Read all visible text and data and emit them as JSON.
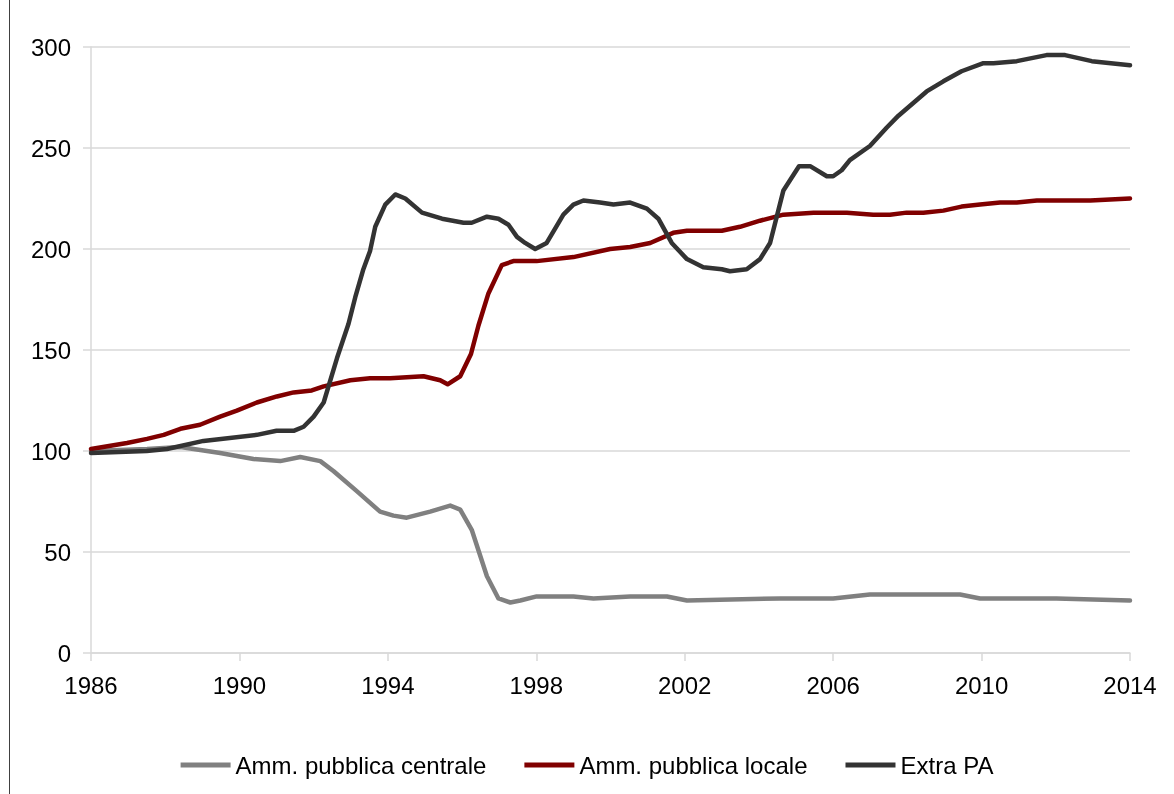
{
  "chart_data": {
    "type": "line",
    "xlim": [
      1986,
      2014
    ],
    "xticks": [
      1986,
      1990,
      1994,
      1998,
      2002,
      2006,
      2010,
      2014
    ],
    "ylim": [
      0,
      300
    ],
    "yticks": [
      0,
      50,
      100,
      150,
      200,
      250,
      300
    ],
    "grid": "y",
    "legend": "bottom",
    "marker": "none",
    "line_style": "solid",
    "series": [
      {
        "name": "Amm. pubblica centrale",
        "color": "#808080",
        "x": [
          1986,
          1987.51,
          1988.41,
          1989.48,
          1990.38,
          1991.1,
          1991.64,
          1992.18,
          1992.54,
          1993.17,
          1993.79,
          1994.15,
          1994.51,
          1995.14,
          1995.68,
          1995.95,
          1996.26,
          1996.67,
          1996.98,
          1997.3,
          1997.57,
          1998.01,
          1999.0,
          1999.54,
          2000.53,
          2001.52,
          2002.06,
          2004.57,
          2006.0,
          2006.99,
          2009.42,
          2009.96,
          2012.02,
          2014
        ],
        "values": [
          100,
          101,
          102,
          99,
          96,
          95,
          97,
          95,
          90,
          80,
          70,
          68,
          67,
          70,
          73,
          71,
          61,
          38,
          27,
          25,
          26,
          28,
          28,
          27,
          28,
          28,
          26,
          27,
          27,
          29,
          29,
          27,
          27,
          26
        ]
      },
      {
        "name": "Amm. pubblica locale",
        "color": "#800000",
        "x": [
          1986,
          1986.97,
          1987.51,
          1987.96,
          1988.41,
          1988.94,
          1989.48,
          1989.93,
          1990.47,
          1991.01,
          1991.46,
          1991.95,
          1992.27,
          1992.99,
          1993.52,
          1994.06,
          1994.96,
          1995.41,
          1995.61,
          1995.95,
          1996.24,
          1996.44,
          1996.71,
          1997.07,
          1997.38,
          1998.01,
          1999.0,
          1999.99,
          2000.53,
          2001.07,
          2001.69,
          2002.06,
          2003.0,
          2003.49,
          2004.03,
          2004.66,
          2005.47,
          2006.37,
          2007.08,
          2007.53,
          2007.98,
          2008.43,
          2008.97,
          2009.46,
          2009.96,
          2010.5,
          2010.95,
          2011.49,
          2012.93,
          2014
        ],
        "values": [
          101,
          104,
          106,
          108,
          111,
          113,
          117,
          120,
          124,
          127,
          129,
          130,
          132,
          135,
          136,
          136,
          137,
          135,
          133,
          137,
          148,
          162,
          178,
          192,
          194,
          194,
          196,
          200,
          201,
          203,
          208,
          209,
          209,
          211,
          214,
          217,
          218,
          218,
          217,
          217,
          218,
          218,
          219,
          221,
          222,
          223,
          223,
          224,
          224,
          225
        ]
      },
      {
        "name": "Extra PA",
        "color": "#333333",
        "x": [
          1986,
          1987.5,
          1988.05,
          1989.03,
          1990.47,
          1991.0,
          1991.46,
          1991.73,
          1992.0,
          1992.27,
          1992.63,
          1992.94,
          1993.12,
          1993.34,
          1993.52,
          1993.66,
          1993.93,
          1994.2,
          1994.47,
          1994.92,
          1995.46,
          1996.04,
          1996.26,
          1996.67,
          1996.98,
          1997.25,
          1997.48,
          1997.7,
          1997.97,
          1998.28,
          1998.73,
          1999.0,
          1999.27,
          1999.72,
          2000.08,
          2000.53,
          2000.98,
          2001.29,
          2001.65,
          2002.06,
          2002.5,
          2003.0,
          2003.22,
          2003.67,
          2004.03,
          2004.3,
          2004.66,
          2005.08,
          2005.38,
          2005.83,
          2006.0,
          2006.23,
          2006.45,
          2006.99,
          2007.44,
          2007.76,
          2008.52,
          2008.97,
          2009.46,
          2010.05,
          2010.32,
          2010.95,
          2011.75,
          2012.25,
          2012.97,
          2014
        ],
        "values": [
          99,
          100,
          101,
          105,
          108,
          110,
          110,
          112,
          117,
          124,
          146,
          163,
          176,
          190,
          199,
          211,
          222,
          227,
          225,
          218,
          215,
          213,
          213,
          216,
          215,
          212,
          206,
          203,
          200,
          203,
          217,
          222,
          224,
          223,
          222,
          223,
          220,
          215,
          203,
          195,
          191,
          190,
          189,
          190,
          195,
          203,
          229,
          241,
          241,
          236,
          236,
          239,
          244,
          251,
          260,
          266,
          278,
          283,
          288,
          292,
          292,
          293,
          296,
          296,
          293,
          291
        ]
      }
    ]
  }
}
